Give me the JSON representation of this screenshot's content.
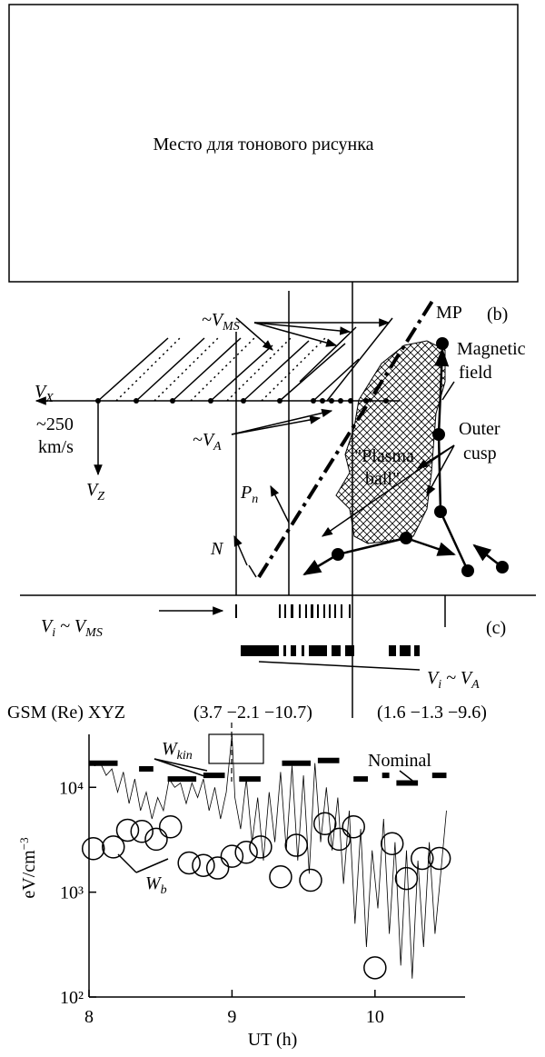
{
  "placeholder": "Место для тонового рисунка",
  "panel_b": {
    "label": "(b)",
    "mp": "MP",
    "vms": {
      "main": "~V",
      "sub": "MS"
    },
    "vx": {
      "main": "V",
      "sub": "X"
    },
    "speed": [
      "~250",
      "km/s"
    ],
    "vz": {
      "main": "V",
      "sub": "Z"
    },
    "va": {
      "main": "~V",
      "sub": "A"
    },
    "magnetic_field": [
      "Magnetic",
      "field"
    ],
    "plasma_ball": [
      "\"Plasma",
      "ball\""
    ],
    "outer_cusp": [
      "Outer",
      "cusp"
    ],
    "pn": {
      "main": "P",
      "sub": "n"
    },
    "n": "N"
  },
  "panel_c": {
    "label": "(c)",
    "vi_vms": {
      "v": "V",
      "sub": "i",
      "rest": " ~ V",
      "sub2": "MS"
    },
    "vi_va": {
      "v": "V",
      "sub": "i",
      "rest": " ~ V",
      "sub2": "A"
    }
  },
  "gsm": {
    "label": "GSM (Re) XYZ",
    "p1": "(3.7  −2.1  −10.7)",
    "p2": "(1.6  −1.3  −9.6)"
  },
  "chart_data": {
    "type": "line",
    "xlabel": "UT  (h)",
    "ylabel": {
      "main": "eV/cm",
      "sup": "−3"
    },
    "xlim": [
      8,
      10.63
    ],
    "ylim": [
      100,
      32000
    ],
    "log_y": true,
    "xticks": [
      8,
      9,
      10
    ],
    "yticks": [
      {
        "value": 100,
        "label": "10²"
      },
      {
        "value": 1000,
        "label": "10³"
      },
      {
        "value": 10000,
        "label": "10⁴"
      }
    ],
    "annotations": {
      "w_kin": {
        "main": "W",
        "sub": "kin"
      },
      "w_b": {
        "main": "W",
        "sub": "b"
      },
      "nominal": "Nominal"
    },
    "series": [
      {
        "style": "line",
        "color": "#000000",
        "x": [
          8.0,
          8.04,
          8.08,
          8.12,
          8.16,
          8.2,
          8.24,
          8.28,
          8.32,
          8.36,
          8.4,
          8.44,
          8.48,
          8.52,
          8.56,
          8.6,
          8.64,
          8.68,
          8.72,
          8.76,
          8.8,
          8.84,
          8.88,
          8.92,
          8.96,
          9.0,
          9.02,
          9.06,
          9.1,
          9.14,
          9.18,
          9.22,
          9.26,
          9.3,
          9.34,
          9.38,
          9.42,
          9.46,
          9.5,
          9.54,
          9.58,
          9.62,
          9.66,
          9.7,
          9.74,
          9.78,
          9.82,
          9.86,
          9.9,
          9.94,
          9.98,
          10.02,
          10.06,
          10.1,
          10.14,
          10.18,
          10.22,
          10.26,
          10.3,
          10.34,
          10.38,
          10.42,
          10.46,
          10.5
        ],
        "values": [
          18000,
          16000,
          17000,
          13000,
          15000,
          9000,
          14000,
          7000,
          12000,
          6000,
          9000,
          5000,
          8000,
          6000,
          12000,
          10000,
          11000,
          7000,
          11000,
          8000,
          12000,
          6000,
          10000,
          5000,
          9000,
          32000,
          8000,
          4000,
          12000,
          3000,
          8000,
          2000,
          9000,
          3000,
          14000,
          2500,
          16000,
          2000,
          13000,
          1500,
          17000,
          3000,
          10000,
          2500,
          8000,
          1200,
          6000,
          500,
          4000,
          300,
          2500,
          700,
          5000,
          400,
          3000,
          200,
          2500,
          150,
          2000,
          300,
          3000,
          400,
          1500,
          6000
        ]
      },
      {
        "style": "circle",
        "color": "#000000",
        "x": [
          8.03,
          8.17,
          8.27,
          8.37,
          8.47,
          8.57,
          8.7,
          8.8,
          8.9,
          9.0,
          9.1,
          9.2,
          9.34,
          9.45,
          9.55,
          9.65,
          9.75,
          9.85,
          10.0,
          10.12,
          10.22,
          10.33,
          10.45
        ],
        "values": [
          2600,
          2700,
          3900,
          3800,
          3200,
          4200,
          1900,
          1800,
          1700,
          2200,
          2400,
          2700,
          1400,
          2800,
          1300,
          4500,
          3200,
          4200,
          190,
          2900,
          1350,
          2100,
          2100
        ]
      },
      {
        "style": "thick",
        "color": "#000000",
        "x": [
          8.0,
          8.2,
          null,
          8.35,
          8.45,
          null,
          8.55,
          8.75,
          null,
          8.8,
          8.95,
          null,
          9.05,
          9.2,
          null,
          9.35,
          9.55,
          null,
          9.6,
          9.75,
          null,
          9.85,
          9.95,
          null,
          10.05,
          10.1,
          null,
          10.15,
          10.3,
          null,
          10.4,
          10.5
        ],
        "values": [
          17000,
          17000,
          null,
          15000,
          15000,
          null,
          12000,
          12000,
          null,
          13000,
          13000,
          null,
          12000,
          12000,
          null,
          17000,
          17000,
          null,
          18000,
          18000,
          null,
          12000,
          12000,
          null,
          13000,
          13000,
          null,
          11000,
          11000,
          null,
          13000,
          13000
        ]
      }
    ]
  }
}
